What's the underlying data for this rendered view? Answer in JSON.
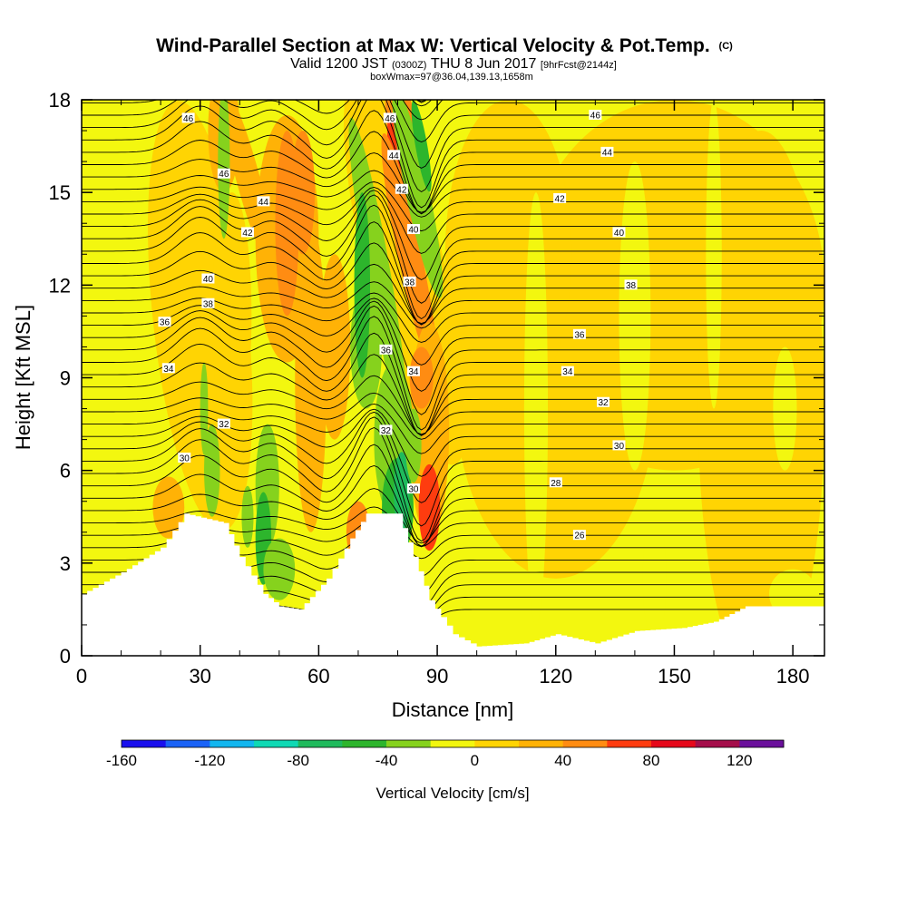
{
  "chart_data": {
    "type": "heatmap",
    "title": "Wind-Parallel Section at Max W: Vertical Velocity & Pot.Temp.",
    "title_mark": "(C)",
    "subtitle_parts": [
      "Valid 1200 JST",
      "(0300Z)",
      "THU 8 Jun 2017",
      "[9hrFcst@2144z]"
    ],
    "subtitle2": "boxWmax=97@36.04,139.13,1658m",
    "xlabel": "Distance [nm]",
    "ylabel": "Height [Kft MSL]",
    "xlim": [
      0,
      188
    ],
    "ylim": [
      0,
      18
    ],
    "x_ticks": [
      "0",
      "30",
      "60",
      "90",
      "120",
      "150",
      "180"
    ],
    "y_ticks": [
      "0",
      "3",
      "6",
      "9",
      "12",
      "15",
      "18"
    ],
    "colorbar": {
      "label": "Vertical Velocity [cm/s]",
      "ticks": [
        "-160",
        "-120",
        "-80",
        "-40",
        "0",
        "40",
        "80",
        "120"
      ],
      "colors": [
        "#1a10ee",
        "#1a63f7",
        "#12b6ef",
        "#0fd9b4",
        "#1fba5c",
        "#2db52c",
        "#86d21d",
        "#f3f70f",
        "#ffd403",
        "#ffb206",
        "#ff8c12",
        "#fe3c0f",
        "#e6081a",
        "#a40e4a",
        "#6a0f9b"
      ]
    },
    "terrain_kft": [
      [
        0,
        2
      ],
      [
        10,
        2.7
      ],
      [
        20,
        3.5
      ],
      [
        26,
        4.6
      ],
      [
        36,
        4.3
      ],
      [
        40,
        3.2
      ],
      [
        46,
        2.0
      ],
      [
        50,
        1.6
      ],
      [
        55,
        1.5
      ],
      [
        62,
        2.5
      ],
      [
        68,
        3.8
      ],
      [
        72,
        4.6
      ],
      [
        80,
        4.6
      ],
      [
        84,
        3.2
      ],
      [
        88,
        1.8
      ],
      [
        94,
        0.7
      ],
      [
        100,
        0.3
      ],
      [
        112,
        0.4
      ],
      [
        120,
        0.7
      ],
      [
        130,
        0.4
      ],
      [
        140,
        0.8
      ],
      [
        152,
        0.9
      ],
      [
        160,
        1.1
      ],
      [
        168,
        1.6
      ],
      [
        188,
        1.6
      ]
    ],
    "theta_isentropes_c": [
      26,
      28,
      30,
      32,
      34,
      36,
      38,
      40,
      42,
      44,
      46
    ],
    "theta_labels": [
      {
        "text": "46",
        "x": 27,
        "y": 17.4
      },
      {
        "text": "46",
        "x": 36,
        "y": 15.6
      },
      {
        "text": "44",
        "x": 46,
        "y": 14.7
      },
      {
        "text": "42",
        "x": 42,
        "y": 13.7
      },
      {
        "text": "40",
        "x": 32,
        "y": 12.2
      },
      {
        "text": "38",
        "x": 32,
        "y": 11.4
      },
      {
        "text": "36",
        "x": 21,
        "y": 10.8
      },
      {
        "text": "34",
        "x": 22,
        "y": 9.3
      },
      {
        "text": "32",
        "x": 36,
        "y": 7.5
      },
      {
        "text": "30",
        "x": 26,
        "y": 6.4
      },
      {
        "text": "46",
        "x": 78,
        "y": 17.4
      },
      {
        "text": "44",
        "x": 79,
        "y": 16.2
      },
      {
        "text": "42",
        "x": 81,
        "y": 15.1
      },
      {
        "text": "40",
        "x": 84,
        "y": 13.8
      },
      {
        "text": "38",
        "x": 83,
        "y": 12.1
      },
      {
        "text": "36",
        "x": 77,
        "y": 9.9
      },
      {
        "text": "34",
        "x": 84,
        "y": 9.2
      },
      {
        "text": "32",
        "x": 77,
        "y": 7.3
      },
      {
        "text": "30",
        "x": 84,
        "y": 5.4
      },
      {
        "text": "46",
        "x": 130,
        "y": 17.5
      },
      {
        "text": "44",
        "x": 133,
        "y": 16.3
      },
      {
        "text": "42",
        "x": 121,
        "y": 14.8
      },
      {
        "text": "40",
        "x": 136,
        "y": 13.7
      },
      {
        "text": "38",
        "x": 139,
        "y": 12.0
      },
      {
        "text": "36",
        "x": 126,
        "y": 10.4
      },
      {
        "text": "34",
        "x": 123,
        "y": 9.2
      },
      {
        "text": "32",
        "x": 132,
        "y": 8.2
      },
      {
        "text": "30",
        "x": 136,
        "y": 6.8
      },
      {
        "text": "28",
        "x": 120,
        "y": 5.6
      },
      {
        "text": "26",
        "x": 126,
        "y": 3.9
      }
    ]
  }
}
